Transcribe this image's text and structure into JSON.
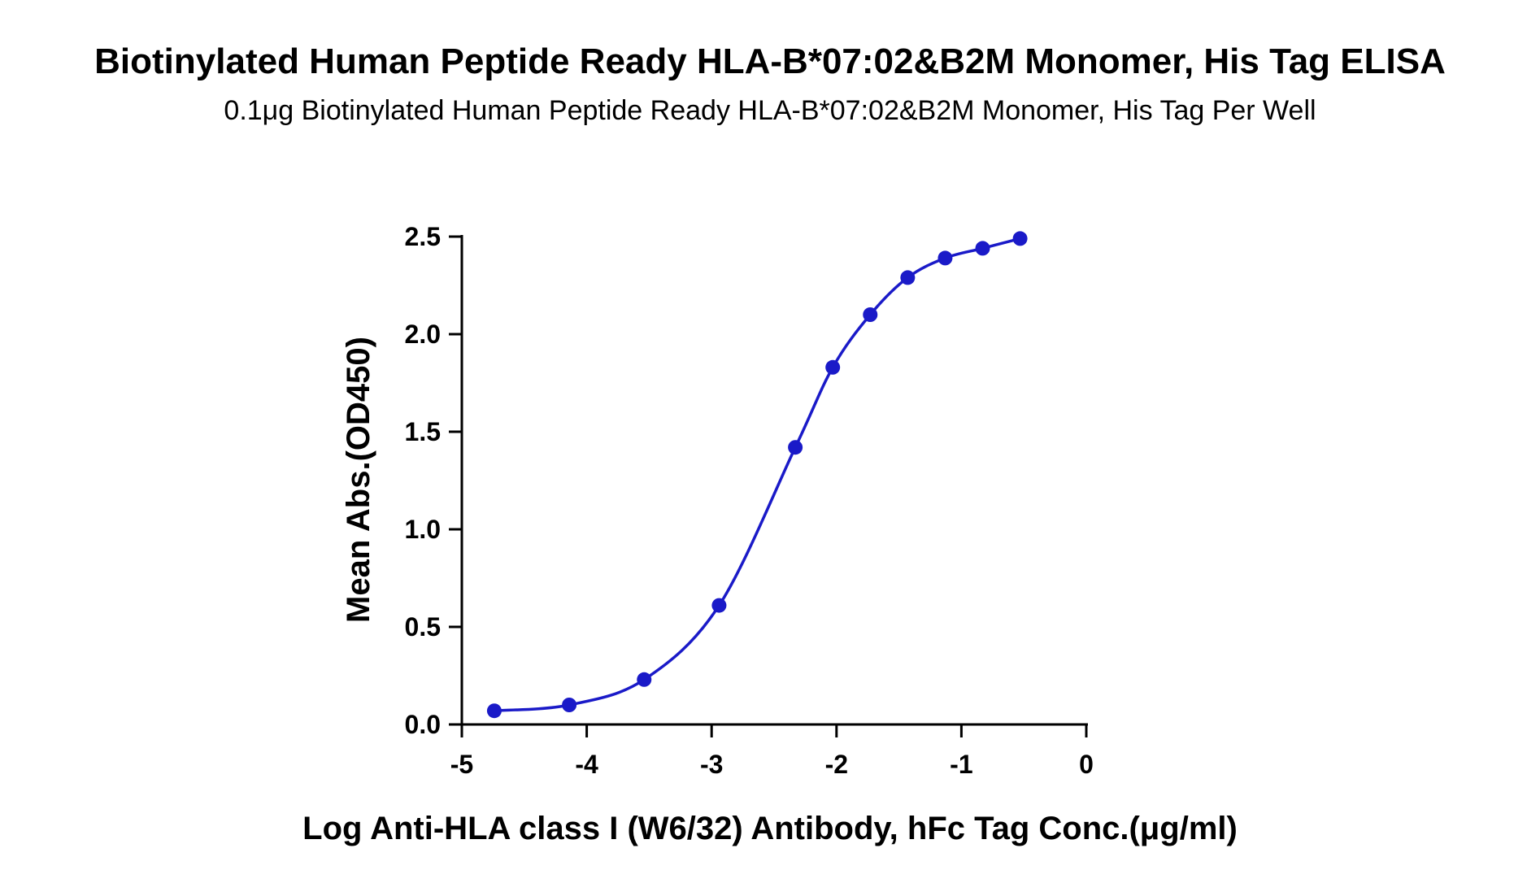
{
  "chart_data": {
    "type": "line",
    "title": "Biotinylated Human Peptide Ready  HLA-B*07:02&B2M Monomer, His Tag ELISA",
    "subtitle": "0.1μg Biotinylated Human Peptide Ready  HLA-B*07:02&B2M Monomer, His Tag Per Well",
    "xlabel": "Log Anti-HLA class I (W6/32) Antibody, hFc Tag Conc.(μg/ml)",
    "ylabel": "Mean Abs.(OD450)",
    "xlim": [
      -5,
      0
    ],
    "ylim": [
      0,
      2.5
    ],
    "xticks": [
      "-5",
      "-4",
      "-3",
      "-2",
      "-1",
      "0"
    ],
    "yticks": [
      "0.0",
      "0.5",
      "1.0",
      "1.5",
      "2.0",
      "2.5"
    ],
    "grid": false,
    "series": [
      {
        "color": "#1a1ac8",
        "points": [
          {
            "x": -4.74,
            "y": 0.07
          },
          {
            "x": -4.14,
            "y": 0.1
          },
          {
            "x": -3.54,
            "y": 0.23
          },
          {
            "x": -2.94,
            "y": 0.61
          },
          {
            "x": -2.33,
            "y": 1.42
          },
          {
            "x": -2.03,
            "y": 1.83
          },
          {
            "x": -1.73,
            "y": 2.1
          },
          {
            "x": -1.43,
            "y": 2.29
          },
          {
            "x": -1.13,
            "y": 2.39
          },
          {
            "x": -0.83,
            "y": 2.44
          },
          {
            "x": -0.53,
            "y": 2.49
          }
        ]
      }
    ]
  }
}
